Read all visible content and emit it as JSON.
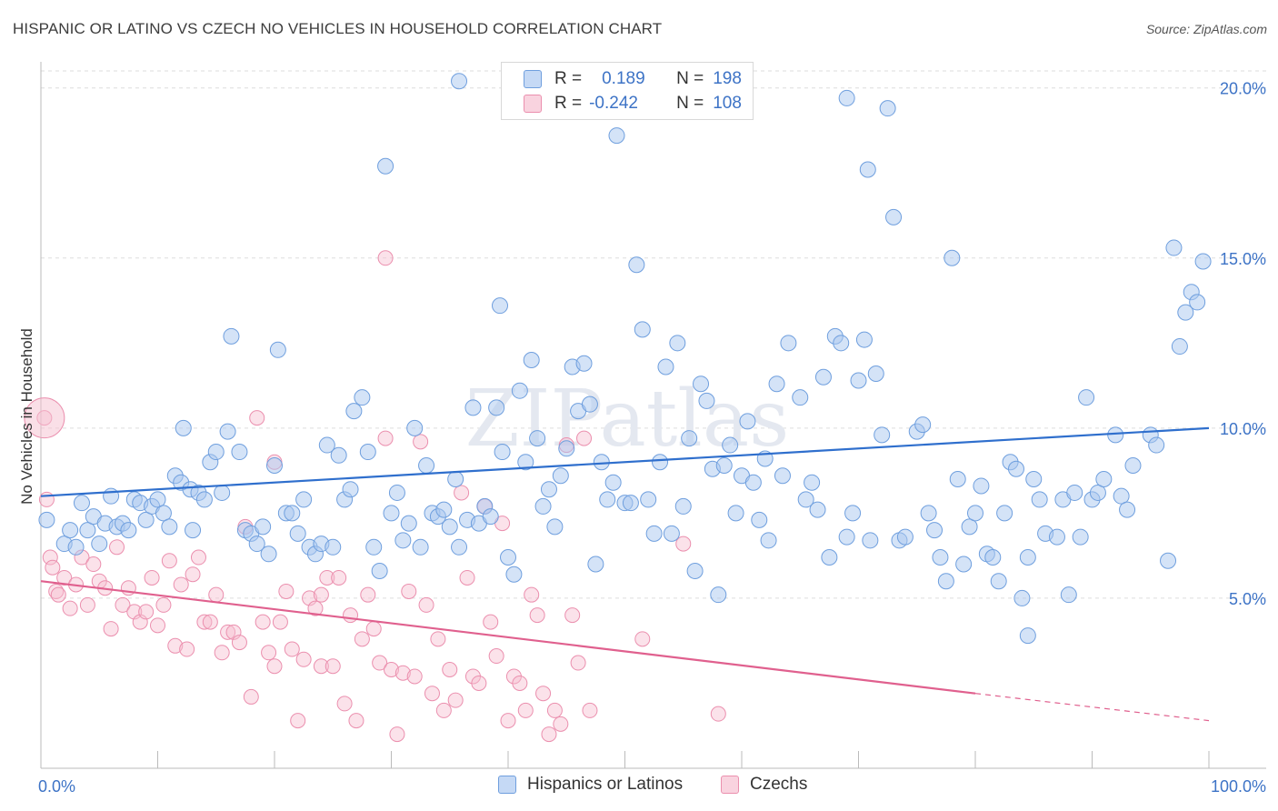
{
  "title": "HISPANIC OR LATINO VS CZECH NO VEHICLES IN HOUSEHOLD CORRELATION CHART",
  "source_label": "Source: ZipAtlas.com",
  "watermark": "ZIPatlas",
  "legend": {
    "rows": [
      {
        "r_label": "R =",
        "r_value": "0.189",
        "n_label": "N =",
        "n_value": "198"
      },
      {
        "r_label": "R =",
        "r_value": "-0.242",
        "n_label": "N =",
        "n_value": "108"
      }
    ]
  },
  "colors": {
    "blue_fill": "#aac8f0",
    "blue_stroke": "#6f9fde",
    "blue_line": "#2f6fcd",
    "pink_fill": "#f6bfd0",
    "pink_stroke": "#eb8fae",
    "pink_line": "#e0608e",
    "tick_text": "#3d73c6",
    "grid": "#dddddd"
  },
  "chart_data": {
    "type": "scatter",
    "title": "HISPANIC OR LATINO VS CZECH NO VEHICLES IN HOUSEHOLD CORRELATION CHART",
    "xlabel": "",
    "ylabel": "No Vehicles in Household",
    "xlim": [
      0,
      100
    ],
    "ylim": [
      0,
      20.5
    ],
    "x_tick_labels": [
      "0.0%",
      "100.0%"
    ],
    "y_ticks": [
      5,
      10,
      15,
      20
    ],
    "y_tick_labels": [
      "5.0%",
      "10.0%",
      "15.0%",
      "20.0%"
    ],
    "grid": "horizontal dashed",
    "legend_position": "bottom",
    "series": [
      {
        "name": "Hispanics or Latinos",
        "color": "#6f9fde",
        "trend": {
          "x": [
            0,
            100
          ],
          "y": [
            8.0,
            10.0
          ]
        },
        "points": [
          [
            0.5,
            7.3
          ],
          [
            2,
            6.6
          ],
          [
            2.5,
            7.0
          ],
          [
            3,
            6.5
          ],
          [
            3.5,
            7.8
          ],
          [
            4,
            7.0
          ],
          [
            4.5,
            7.4
          ],
          [
            5,
            6.6
          ],
          [
            5.5,
            7.2
          ],
          [
            6,
            8.0
          ],
          [
            6.5,
            7.1
          ],
          [
            7,
            7.2
          ],
          [
            7.5,
            7.0
          ],
          [
            8,
            7.9
          ],
          [
            8.5,
            7.8
          ],
          [
            9,
            7.3
          ],
          [
            9.5,
            7.7
          ],
          [
            10,
            7.9
          ],
          [
            10.5,
            7.5
          ],
          [
            11,
            7.1
          ],
          [
            11.5,
            8.6
          ],
          [
            12,
            8.4
          ],
          [
            12.2,
            10.0
          ],
          [
            12.8,
            8.2
          ],
          [
            13,
            7.0
          ],
          [
            13.5,
            8.1
          ],
          [
            14,
            7.9
          ],
          [
            14.5,
            9.0
          ],
          [
            15,
            9.3
          ],
          [
            15.5,
            8.1
          ],
          [
            16,
            9.9
          ],
          [
            16.3,
            12.7
          ],
          [
            17,
            9.3
          ],
          [
            17.5,
            7.0
          ],
          [
            18,
            6.9
          ],
          [
            18.5,
            6.6
          ],
          [
            19,
            7.1
          ],
          [
            19.5,
            6.3
          ],
          [
            20,
            8.9
          ],
          [
            20.3,
            12.3
          ],
          [
            21,
            7.5
          ],
          [
            21.5,
            7.5
          ],
          [
            22,
            6.9
          ],
          [
            22.5,
            7.9
          ],
          [
            23,
            6.5
          ],
          [
            23.5,
            6.3
          ],
          [
            24,
            6.6
          ],
          [
            24.5,
            9.5
          ],
          [
            25,
            6.5
          ],
          [
            25.5,
            9.2
          ],
          [
            26,
            7.9
          ],
          [
            26.5,
            8.2
          ],
          [
            26.8,
            10.5
          ],
          [
            27.5,
            10.9
          ],
          [
            28,
            9.3
          ],
          [
            28.5,
            6.5
          ],
          [
            29,
            5.8
          ],
          [
            29.5,
            17.7
          ],
          [
            30,
            7.5
          ],
          [
            30.5,
            8.1
          ],
          [
            31,
            6.7
          ],
          [
            31.5,
            7.2
          ],
          [
            32,
            10.0
          ],
          [
            32.5,
            6.5
          ],
          [
            33,
            8.9
          ],
          [
            33.5,
            7.5
          ],
          [
            34,
            7.4
          ],
          [
            34.5,
            7.6
          ],
          [
            35,
            7.1
          ],
          [
            35.5,
            8.5
          ],
          [
            35.8,
            6.5
          ],
          [
            36.5,
            7.3
          ],
          [
            37,
            10.6
          ],
          [
            37.5,
            7.2
          ],
          [
            38,
            7.7
          ],
          [
            38.5,
            7.4
          ],
          [
            39,
            10.6
          ],
          [
            39.3,
            13.6
          ],
          [
            39.5,
            9.3
          ],
          [
            40,
            6.2
          ],
          [
            40.5,
            5.7
          ],
          [
            41,
            11.1
          ],
          [
            41.5,
            9.0
          ],
          [
            42,
            12.0
          ],
          [
            42.5,
            9.7
          ],
          [
            43,
            7.7
          ],
          [
            43.5,
            8.2
          ],
          [
            44,
            7.1
          ],
          [
            44.5,
            8.6
          ],
          [
            45,
            9.4
          ],
          [
            45.5,
            11.8
          ],
          [
            46,
            10.5
          ],
          [
            46.5,
            11.9
          ],
          [
            47,
            10.7
          ],
          [
            47.5,
            6.0
          ],
          [
            48,
            9.0
          ],
          [
            48.5,
            7.9
          ],
          [
            49,
            8.4
          ],
          [
            49.3,
            18.6
          ],
          [
            50,
            7.8
          ],
          [
            50.5,
            7.8
          ],
          [
            51,
            14.8
          ],
          [
            51.5,
            12.9
          ],
          [
            52,
            7.9
          ],
          [
            52.5,
            6.9
          ],
          [
            53,
            9.0
          ],
          [
            53.5,
            11.8
          ],
          [
            54,
            6.9
          ],
          [
            54.5,
            12.5
          ],
          [
            55,
            7.7
          ],
          [
            55.5,
            9.7
          ],
          [
            56,
            5.8
          ],
          [
            56.5,
            11.3
          ],
          [
            57,
            10.8
          ],
          [
            57.5,
            8.8
          ],
          [
            58,
            5.1
          ],
          [
            58.5,
            8.9
          ],
          [
            59,
            9.5
          ],
          [
            59.5,
            7.5
          ],
          [
            60,
            8.6
          ],
          [
            60.5,
            10.2
          ],
          [
            61,
            8.4
          ],
          [
            61.5,
            7.3
          ],
          [
            62,
            9.1
          ],
          [
            62.3,
            6.7
          ],
          [
            63,
            11.3
          ],
          [
            63.5,
            8.6
          ],
          [
            64,
            12.5
          ],
          [
            65,
            10.9
          ],
          [
            65.5,
            7.9
          ],
          [
            66,
            8.4
          ],
          [
            66.5,
            7.6
          ],
          [
            67,
            11.5
          ],
          [
            67.5,
            6.2
          ],
          [
            68,
            12.7
          ],
          [
            68.5,
            12.5
          ],
          [
            69,
            6.8
          ],
          [
            69.5,
            7.5
          ],
          [
            70,
            11.4
          ],
          [
            70.5,
            12.6
          ],
          [
            71,
            6.7
          ],
          [
            71.5,
            11.6
          ],
          [
            72,
            9.8
          ],
          [
            73,
            16.2
          ],
          [
            73.5,
            6.7
          ],
          [
            74,
            6.8
          ],
          [
            75,
            9.9
          ],
          [
            75.5,
            10.1
          ],
          [
            76,
            7.5
          ],
          [
            76.5,
            7.0
          ],
          [
            77,
            6.2
          ],
          [
            77.5,
            5.5
          ],
          [
            78,
            15.0
          ],
          [
            78.5,
            8.5
          ],
          [
            79,
            6.0
          ],
          [
            79.5,
            7.1
          ],
          [
            80,
            7.5
          ],
          [
            80.5,
            8.3
          ],
          [
            81,
            6.3
          ],
          [
            81.5,
            6.2
          ],
          [
            82,
            5.5
          ],
          [
            82.5,
            7.5
          ],
          [
            83,
            9.0
          ],
          [
            83.5,
            8.8
          ],
          [
            84,
            5.0
          ],
          [
            84.5,
            6.2
          ],
          [
            85,
            8.5
          ],
          [
            85.5,
            7.9
          ],
          [
            86,
            6.9
          ],
          [
            87,
            6.8
          ],
          [
            87.5,
            7.9
          ],
          [
            88,
            5.1
          ],
          [
            88.5,
            8.1
          ],
          [
            89,
            6.8
          ],
          [
            89.5,
            10.9
          ],
          [
            90,
            7.9
          ],
          [
            90.5,
            8.1
          ],
          [
            91,
            8.5
          ],
          [
            92,
            9.8
          ],
          [
            92.5,
            8.0
          ],
          [
            93,
            7.6
          ],
          [
            93.5,
            8.9
          ],
          [
            95,
            9.8
          ],
          [
            95.5,
            9.5
          ],
          [
            96.5,
            6.1
          ],
          [
            97,
            15.3
          ],
          [
            97.5,
            12.4
          ],
          [
            98,
            13.4
          ],
          [
            98.5,
            14.0
          ],
          [
            99,
            13.7
          ],
          [
            99.5,
            14.9
          ],
          [
            84.5,
            3.9
          ],
          [
            72.5,
            19.4
          ],
          [
            69,
            19.7
          ],
          [
            70.8,
            17.6
          ],
          [
            35.8,
            20.2
          ]
        ]
      },
      {
        "name": "Czechs",
        "color": "#eb8fae",
        "trend": {
          "x": [
            0,
            80
          ],
          "y": [
            5.5,
            2.2
          ],
          "dashed_to": {
            "x": 100,
            "y": 1.4
          }
        },
        "points": [
          [
            0.5,
            7.9
          ],
          [
            0.8,
            6.2
          ],
          [
            1,
            5.9
          ],
          [
            1.3,
            5.2
          ],
          [
            1.5,
            5.1
          ],
          [
            2,
            5.6
          ],
          [
            2.5,
            4.7
          ],
          [
            3,
            5.4
          ],
          [
            3.5,
            6.2
          ],
          [
            4,
            4.8
          ],
          [
            4.5,
            6.0
          ],
          [
            5,
            5.5
          ],
          [
            5.5,
            5.3
          ],
          [
            6,
            4.1
          ],
          [
            6.5,
            6.5
          ],
          [
            7,
            4.8
          ],
          [
            7.5,
            5.3
          ],
          [
            8,
            4.6
          ],
          [
            8.5,
            4.3
          ],
          [
            9,
            4.6
          ],
          [
            9.5,
            5.6
          ],
          [
            10,
            4.2
          ],
          [
            10.5,
            4.8
          ],
          [
            11,
            6.1
          ],
          [
            11.5,
            3.6
          ],
          [
            12,
            5.4
          ],
          [
            12.5,
            3.5
          ],
          [
            13,
            5.7
          ],
          [
            13.5,
            6.2
          ],
          [
            14,
            4.3
          ],
          [
            14.5,
            4.3
          ],
          [
            15,
            5.1
          ],
          [
            15.5,
            3.4
          ],
          [
            16,
            4.0
          ],
          [
            16.5,
            4.0
          ],
          [
            17,
            3.7
          ],
          [
            17.5,
            7.1
          ],
          [
            18,
            2.1
          ],
          [
            18.5,
            10.3
          ],
          [
            19,
            4.3
          ],
          [
            19.5,
            3.4
          ],
          [
            20,
            3.0
          ],
          [
            20.5,
            4.3
          ],
          [
            21,
            5.2
          ],
          [
            21.5,
            3.5
          ],
          [
            22,
            1.4
          ],
          [
            22.5,
            3.2
          ],
          [
            23,
            5.0
          ],
          [
            23.5,
            4.7
          ],
          [
            24,
            3.0
          ],
          [
            24.5,
            5.6
          ],
          [
            25,
            3.0
          ],
          [
            25.5,
            5.6
          ],
          [
            26,
            1.9
          ],
          [
            26.5,
            4.5
          ],
          [
            27,
            1.4
          ],
          [
            27.5,
            3.8
          ],
          [
            28,
            5.1
          ],
          [
            28.5,
            4.1
          ],
          [
            29,
            3.1
          ],
          [
            29.5,
            9.7
          ],
          [
            30,
            2.9
          ],
          [
            30.5,
            1.0
          ],
          [
            31,
            2.8
          ],
          [
            31.5,
            5.2
          ],
          [
            32,
            2.7
          ],
          [
            32.5,
            9.6
          ],
          [
            33,
            4.8
          ],
          [
            33.5,
            2.2
          ],
          [
            34,
            3.8
          ],
          [
            34.5,
            1.7
          ],
          [
            35,
            2.9
          ],
          [
            35.5,
            2.0
          ],
          [
            36,
            8.1
          ],
          [
            36.5,
            5.6
          ],
          [
            37,
            2.7
          ],
          [
            37.5,
            2.5
          ],
          [
            38,
            7.7
          ],
          [
            38.5,
            4.3
          ],
          [
            39,
            3.3
          ],
          [
            39.5,
            7.2
          ],
          [
            40,
            1.4
          ],
          [
            40.5,
            2.7
          ],
          [
            41,
            2.5
          ],
          [
            41.5,
            1.7
          ],
          [
            42,
            5.1
          ],
          [
            42.5,
            4.5
          ],
          [
            43,
            2.2
          ],
          [
            43.5,
            1.0
          ],
          [
            44,
            1.7
          ],
          [
            44.5,
            1.3
          ],
          [
            45,
            9.5
          ],
          [
            45.5,
            4.5
          ],
          [
            46,
            3.1
          ],
          [
            46.5,
            9.7
          ],
          [
            47,
            1.7
          ],
          [
            51.5,
            3.8
          ],
          [
            55,
            6.6
          ],
          [
            58,
            1.6
          ],
          [
            29.5,
            15.0
          ],
          [
            0.3,
            10.3
          ],
          [
            20,
            9.0
          ],
          [
            24,
            5.1
          ]
        ]
      }
    ]
  },
  "bottom_legend": [
    {
      "label": "Hispanics or Latinos"
    },
    {
      "label": "Czechs"
    }
  ]
}
